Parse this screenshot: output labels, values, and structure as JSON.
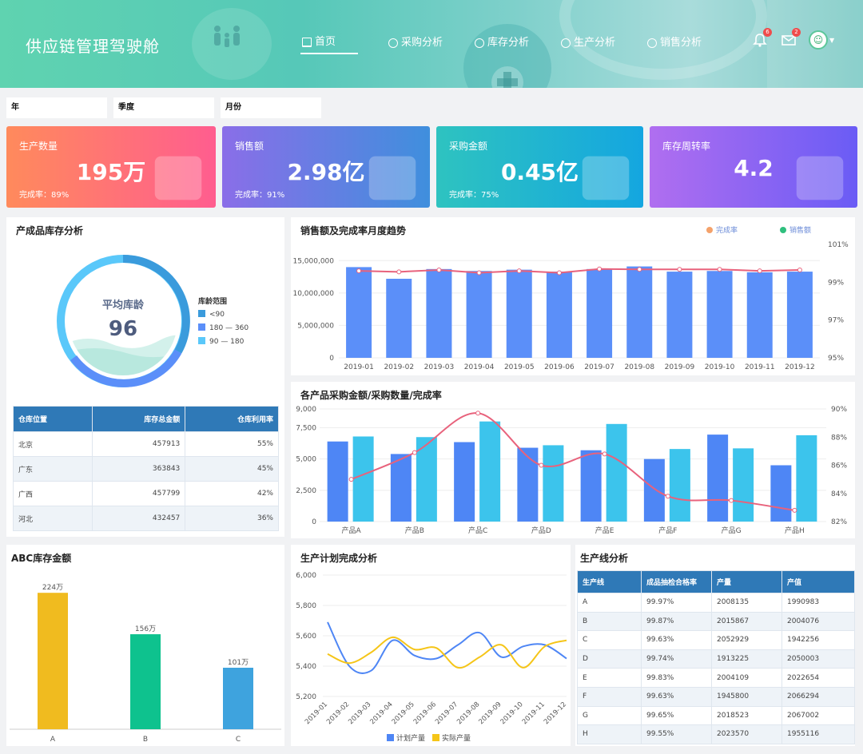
{
  "header": {
    "title": "供应链管理驾驶舱",
    "nav": [
      {
        "label": "首页",
        "icon": "home-icon",
        "active": true
      },
      {
        "label": "采购分析",
        "icon": "pie-icon"
      },
      {
        "label": "库存分析",
        "icon": "pie-icon"
      },
      {
        "label": "生产分析",
        "icon": "pie-icon"
      },
      {
        "label": "销售分析",
        "icon": "pie-icon"
      }
    ],
    "bell_badge": "6",
    "mail_badge": "2"
  },
  "filters": {
    "year": "年",
    "quarter": "季度",
    "month": "月份"
  },
  "kpis": [
    {
      "label": "生产数量",
      "value": "195万",
      "rate": "完成率：89%",
      "icon": "wallet-icon",
      "from": "#ff8a5c",
      "to": "#ff5d8f"
    },
    {
      "label": "销售额",
      "value": "2.98亿",
      "rate": "完成率：91%",
      "icon": "money-bag-icon",
      "from": "#8a6ee8",
      "to": "#3f8fdd"
    },
    {
      "label": "采购金额",
      "value": "0.45亿",
      "rate": "完成率：75%",
      "icon": "clipboard-check-icon",
      "from": "#2ec3c0",
      "to": "#14a6e0"
    },
    {
      "label": "库存周转率",
      "value": "4.2",
      "rate": "",
      "icon": "pie-chart-icon",
      "from": "#b06ef0",
      "to": "#6a5cf5"
    }
  ],
  "inventory": {
    "title": "产成品库存分析",
    "center_label": "平均库龄",
    "center_value": "96",
    "legend_title": "库龄范围",
    "legend": [
      {
        "label": "<90",
        "color": "#3a9bdc"
      },
      {
        "label": "180 — 360",
        "color": "#5b8ff9"
      },
      {
        "label": "90 — 180",
        "color": "#5ac8fa"
      }
    ],
    "table_headers": [
      "仓库位置",
      "库存总金额",
      "仓库利用率"
    ],
    "rows": [
      [
        "北京",
        "457913",
        "55%"
      ],
      [
        "广东",
        "363843",
        "45%"
      ],
      [
        "广西",
        "457799",
        "42%"
      ],
      [
        "河北",
        "432457",
        "36%"
      ]
    ]
  },
  "sales_chart": {
    "title": "销售额及完成率月度趋势",
    "legend_rate": "完成率",
    "legend_sales": "销售额",
    "yticks_left": [
      "15,000,000",
      "10,000,000",
      "5,000,000",
      "0"
    ],
    "yticks_right": [
      "101%",
      "99%",
      "97%",
      "95%"
    ]
  },
  "purchase_chart": {
    "title": "各产品采购金额/采购数量/完成率",
    "yticks_left": [
      "9,000",
      "7,500",
      "5,000",
      "2,500",
      "0"
    ],
    "yticks_right": [
      "90%",
      "88%",
      "86%",
      "84%",
      "82%"
    ]
  },
  "abc_chart": {
    "title": "ABC库存金额"
  },
  "plan_chart": {
    "title": "生产计划完成分析",
    "yticks": [
      "6,000",
      "5,800",
      "5,600",
      "5,400",
      "5,200"
    ],
    "legend_plan": "计划产量",
    "legend_actual": "实际产量"
  },
  "line_table": {
    "title": "生产线分析",
    "headers": [
      "生产线",
      "成品抽检合格率",
      "产量",
      "产值"
    ],
    "rows": [
      [
        "A",
        "99.97%",
        "2008135",
        "1990983"
      ],
      [
        "B",
        "99.87%",
        "2015867",
        "2004076"
      ],
      [
        "C",
        "99.63%",
        "2052929",
        "1942256"
      ],
      [
        "D",
        "99.74%",
        "1913225",
        "2050003"
      ],
      [
        "E",
        "99.83%",
        "2004109",
        "2022654"
      ],
      [
        "F",
        "99.63%",
        "1945800",
        "2066294"
      ],
      [
        "G",
        "99.65%",
        "2018523",
        "2067002"
      ],
      [
        "H",
        "99.55%",
        "2023570",
        "1955116"
      ]
    ]
  },
  "chart_data": [
    {
      "type": "bar",
      "title": "销售额及完成率月度趋势",
      "categories": [
        "2019-01",
        "2019-02",
        "2019-03",
        "2019-04",
        "2019-05",
        "2019-06",
        "2019-07",
        "2019-08",
        "2019-09",
        "2019-10",
        "2019-11",
        "2019-12"
      ],
      "series": [
        {
          "name": "销售额",
          "type": "bar",
          "axis": "left",
          "values": [
            14000000,
            12200000,
            13700000,
            13400000,
            13600000,
            13300000,
            13700000,
            14100000,
            13300000,
            13400000,
            13200000,
            13300000
          ]
        },
        {
          "name": "完成率",
          "type": "line",
          "axis": "right",
          "values": [
            99.6,
            99.55,
            99.65,
            99.5,
            99.6,
            99.5,
            99.7,
            99.68,
            99.68,
            99.68,
            99.6,
            99.65
          ]
        }
      ],
      "ylim": [
        0,
        17500000
      ],
      "ylim_right": [
        95,
        101
      ]
    },
    {
      "type": "bar",
      "title": "各产品采购金额/采购数量/完成率",
      "categories": [
        "产品A",
        "产品B",
        "产品C",
        "产品D",
        "产品E",
        "产品F",
        "产品G",
        "产品H"
      ],
      "series": [
        {
          "type": "bar",
          "axis": "left",
          "values": [
            6400,
            5400,
            6350,
            5900,
            5700,
            5000,
            6950,
            4500
          ]
        },
        {
          "type": "bar",
          "axis": "left",
          "values": [
            6800,
            6750,
            8000,
            6100,
            7800,
            5800,
            5850,
            6900
          ]
        },
        {
          "type": "line",
          "axis": "right",
          "values": [
            85.0,
            86.9,
            89.7,
            86.0,
            86.8,
            83.8,
            83.5,
            82.8
          ]
        }
      ],
      "ylim": [
        0,
        9000
      ],
      "ylim_right": [
        82,
        90
      ]
    },
    {
      "type": "bar",
      "title": "ABC库存金额",
      "categories": [
        "A",
        "B",
        "C"
      ],
      "values": [
        224,
        156,
        101
      ],
      "labels": [
        "224万",
        "156万",
        "101万"
      ],
      "colors": [
        "#f0bb1f",
        "#0ec28e",
        "#3ea3de"
      ],
      "ylim": [
        0,
        240
      ]
    },
    {
      "type": "line",
      "title": "生产计划完成分析",
      "categories": [
        "2019-01",
        "2019-02",
        "2019-03",
        "2019-04",
        "2019-05",
        "2019-06",
        "2019-07",
        "2019-08",
        "2019-09",
        "2019-10",
        "2019-11",
        "2019-12"
      ],
      "series": [
        {
          "name": "计划产量",
          "values": [
            5690,
            5400,
            5370,
            5570,
            5470,
            5450,
            5540,
            5620,
            5460,
            5530,
            5540,
            5450
          ]
        },
        {
          "name": "实际产量",
          "values": [
            5480,
            5420,
            5490,
            5590,
            5510,
            5520,
            5390,
            5460,
            5540,
            5390,
            5530,
            5570
          ]
        }
      ],
      "ylim": [
        5200,
        6000
      ]
    }
  ]
}
